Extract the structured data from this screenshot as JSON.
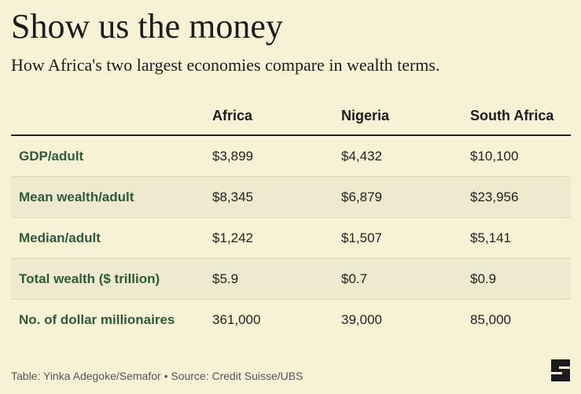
{
  "title": "Show us the money",
  "subtitle": "How Africa's two largest economies compare in wealth terms.",
  "footer": "Table: Yinka Adegoke/Semafor • Source: Credit Suisse/UBS",
  "colors": {
    "background": "#f7f2d6",
    "row_label": "#2e5a3c",
    "shaded_row": "#eeeacf",
    "header_rule": "#222222"
  },
  "chart_data": {
    "type": "table",
    "columns": [
      "Africa",
      "Nigeria",
      "South Africa"
    ],
    "rows": [
      {
        "label": "GDP/adult",
        "values": [
          "$3,899",
          "$4,432",
          "$10,100"
        ]
      },
      {
        "label": "Mean wealth/adult",
        "values": [
          "$8,345",
          "$6,879",
          "$23,956"
        ]
      },
      {
        "label": "Median/adult",
        "values": [
          "$1,242",
          "$1,507",
          "$5,141"
        ]
      },
      {
        "label": "Total wealth ($ trillion)",
        "values": [
          "$5.9",
          "$0.7",
          "$0.9"
        ]
      },
      {
        "label": "No. of dollar millionaires",
        "values": [
          "361,000",
          "39,000",
          "85,000"
        ]
      }
    ]
  }
}
